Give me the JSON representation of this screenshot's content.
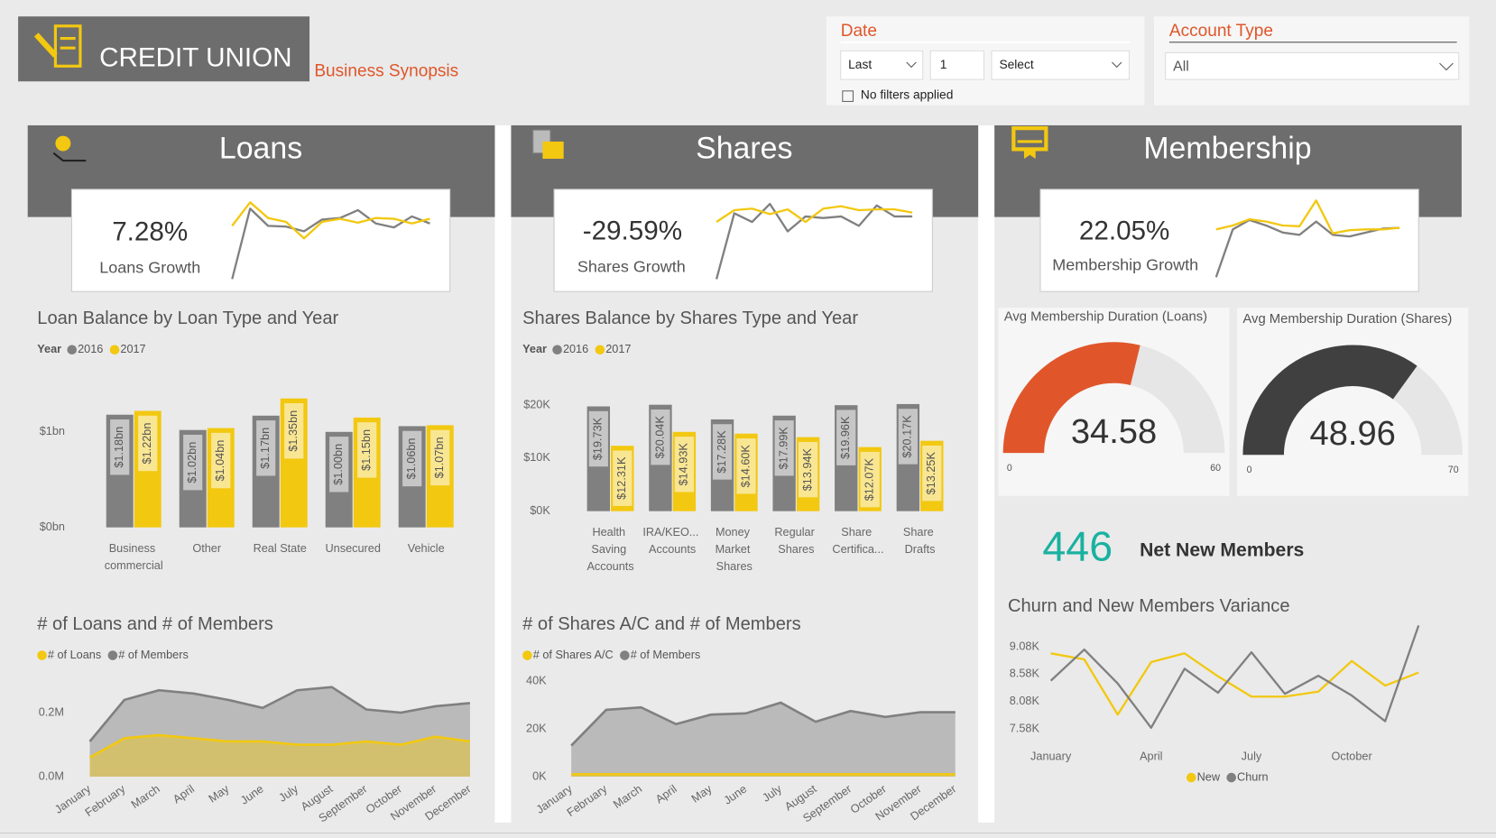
{
  "header": {
    "title": "CREDIT UNION",
    "subtitle": "Business Synopsis"
  },
  "filters": {
    "date": {
      "label": "Date",
      "period": "Last",
      "count": "1",
      "unit": "Select",
      "status": "No filters applied"
    },
    "account_type": {
      "label": "Account Type",
      "value": "All"
    }
  },
  "panels": [
    "Loans",
    "Shares",
    "Membership"
  ],
  "kpis": [
    {
      "value": "7.28%",
      "label": "Loans Growth"
    },
    {
      "value": "-29.59%",
      "label": "Shares Growth"
    },
    {
      "value": "22.05%",
      "label": "Membership Growth"
    }
  ],
  "net_new_members": {
    "value": 446,
    "label": "Net New Members"
  },
  "chart_data": [
    {
      "type": "line",
      "ylim": [
        0,
        10
      ],
      "series": [
        {
          "color": "#808080",
          "values": [
            0,
            9.0,
            6.8,
            6.7,
            6.1,
            7.6,
            7.8,
            8.8,
            7.1,
            6.6,
            8.0,
            7.1
          ]
        },
        {
          "color": "#f2c811",
          "values": [
            6.8,
            9.8,
            7.8,
            7.3,
            5.2,
            7.3,
            7.7,
            7.2,
            7.8,
            7.7,
            7.1,
            7.7
          ]
        }
      ]
    },
    {
      "type": "line",
      "ylim": [
        0,
        10
      ],
      "series": [
        {
          "color": "#808080",
          "values": [
            0,
            8.4,
            7.3,
            9.6,
            6.1,
            8.0,
            7.8,
            8.0,
            6.8,
            9.4,
            8.0,
            8.0
          ]
        },
        {
          "color": "#f2c811",
          "values": [
            7.3,
            8.8,
            9.0,
            8.3,
            8.9,
            7.3,
            9.0,
            9.3,
            8.8,
            8.9,
            8.9,
            8.5
          ]
        }
      ]
    },
    {
      "type": "line",
      "ylim": [
        0,
        10
      ],
      "series": [
        {
          "color": "#808080",
          "values": [
            0,
            6.1,
            7.3,
            6.6,
            5.7,
            5.4,
            7.1,
            5.4,
            5.2,
            5.7,
            6.2,
            6.3
          ]
        },
        {
          "color": "#f2c811",
          "values": [
            6.1,
            6.6,
            7.4,
            7.1,
            6.6,
            6.5,
            9.8,
            5.6,
            6.0,
            6.1,
            6.1,
            6.3
          ]
        }
      ]
    },
    {
      "type": "bar",
      "title": "Loan Balance by Loan Type and Year",
      "legend_title": "Year",
      "categories": [
        "Business commercial",
        "Other",
        "Real State",
        "Unsecured",
        "Vehicle"
      ],
      "series": [
        {
          "name": "2016",
          "color": "#808080",
          "values": [
            1.18,
            1.02,
            1.17,
            1.0,
            1.06
          ],
          "value_labels": [
            "$1.18bn",
            "$1.02bn",
            "$1.17bn",
            "$1.00bn",
            "$1.06bn"
          ]
        },
        {
          "name": "2017",
          "color": "#f2c811",
          "values": [
            1.22,
            1.04,
            1.35,
            1.15,
            1.07
          ],
          "value_labels": [
            "$1.22bn",
            "$1.04bn",
            "$1.35bn",
            "$1.15bn",
            "$1.07bn"
          ]
        }
      ],
      "ylim": [
        0,
        1.5
      ],
      "yticks": [
        {
          "value": 0,
          "label": "$0bn"
        },
        {
          "value": 1,
          "label": "$1bn"
        }
      ]
    },
    {
      "type": "bar",
      "title": "Shares Balance by Shares Type and Year",
      "legend_title": "Year",
      "categories": [
        "Health Saving Accounts",
        "IRA/KEO... Accounts",
        "Money Market Shares",
        "Regular Shares",
        "Share Certifica...",
        "Share Drafts"
      ],
      "series": [
        {
          "name": "2016",
          "color": "#808080",
          "values": [
            19.73,
            20.04,
            17.28,
            17.99,
            19.96,
            20.17
          ],
          "value_labels": [
            "$19.73K",
            "$20.04K",
            "$17.28K",
            "$17.99K",
            "$19.96K",
            "$20.17K"
          ]
        },
        {
          "name": "2017",
          "color": "#f2c811",
          "values": [
            12.31,
            14.93,
            14.6,
            13.94,
            12.07,
            13.25
          ],
          "value_labels": [
            "$12.31K",
            "$14.93K",
            "$14.60K",
            "$13.94K",
            "$12.07K",
            "$13.25K"
          ]
        }
      ],
      "ylim": [
        0,
        25
      ],
      "yticks": [
        {
          "value": 0,
          "label": "$0K"
        },
        {
          "value": 10,
          "label": "$10K"
        },
        {
          "value": 20,
          "label": "$20K"
        }
      ]
    },
    {
      "type": "area",
      "title": "# of Loans and # of Members",
      "categories": [
        "January",
        "February",
        "March",
        "April",
        "May",
        "June",
        "July",
        "August",
        "September",
        "October",
        "November",
        "December"
      ],
      "series": [
        {
          "name": "# of Loans",
          "color": "#f2c811",
          "values": [
            0.06,
            0.12,
            0.13,
            0.12,
            0.11,
            0.11,
            0.1,
            0.1,
            0.11,
            0.1,
            0.125,
            0.11
          ]
        },
        {
          "name": "# of Members",
          "color": "#808080",
          "values": [
            0.11,
            0.24,
            0.27,
            0.26,
            0.24,
            0.215,
            0.27,
            0.28,
            0.21,
            0.2,
            0.22,
            0.23
          ]
        }
      ],
      "ylim": [
        0,
        0.3
      ],
      "yticks": [
        {
          "value": 0,
          "label": "0.0M"
        },
        {
          "value": 0.2,
          "label": "0.2M"
        }
      ]
    },
    {
      "type": "area",
      "title": "# of Shares A/C and # of Members",
      "categories": [
        "January",
        "February",
        "March",
        "April",
        "May",
        "June",
        "July",
        "August",
        "September",
        "October",
        "November",
        "December"
      ],
      "series": [
        {
          "name": "# of Shares A/C",
          "color": "#f2c811",
          "values": [
            1,
            1,
            1,
            1,
            1,
            1,
            1,
            1,
            1,
            1,
            1,
            1
          ]
        },
        {
          "name": "# of Members",
          "color": "#808080",
          "values": [
            13,
            28,
            29,
            22,
            26,
            26.5,
            31,
            23,
            27.5,
            25,
            27,
            27
          ]
        }
      ],
      "ylim": [
        0,
        45
      ],
      "yticks": [
        {
          "value": 0,
          "label": "0K"
        },
        {
          "value": 20,
          "label": "20K"
        },
        {
          "value": 40,
          "label": "40K"
        }
      ]
    },
    {
      "type": "gauge",
      "title": "Avg Membership Duration (Loans)",
      "value": 34.58,
      "min": 0,
      "max": 60,
      "color": "#e0562a"
    },
    {
      "type": "gauge",
      "title": "Avg Membership Duration (Shares)",
      "value": 48.96,
      "min": 0,
      "max": 70,
      "color": "#404040"
    },
    {
      "type": "line",
      "title": "Churn and New Members Variance",
      "categories": [
        "January",
        null,
        null,
        "April",
        null,
        null,
        "July",
        null,
        null,
        "October",
        null,
        null
      ],
      "series": [
        {
          "name": "New",
          "color": "#f2c811",
          "values": [
            8.96,
            8.85,
            7.84,
            8.8,
            8.96,
            8.54,
            8.17,
            8.17,
            8.26,
            8.82,
            8.37,
            8.61
          ]
        },
        {
          "name": "Churn",
          "color": "#808080",
          "values": [
            8.46,
            9.03,
            8.41,
            7.6,
            8.68,
            8.24,
            8.98,
            8.22,
            8.55,
            8.19,
            7.72,
            9.47
          ]
        }
      ],
      "ylim": [
        7.4,
        9.6
      ],
      "yticks": [
        {
          "value": 7.58,
          "label": "7.58K"
        },
        {
          "value": 8.08,
          "label": "8.08K"
        },
        {
          "value": 8.58,
          "label": "8.58K"
        },
        {
          "value": 9.08,
          "label": "9.08K"
        }
      ]
    }
  ]
}
